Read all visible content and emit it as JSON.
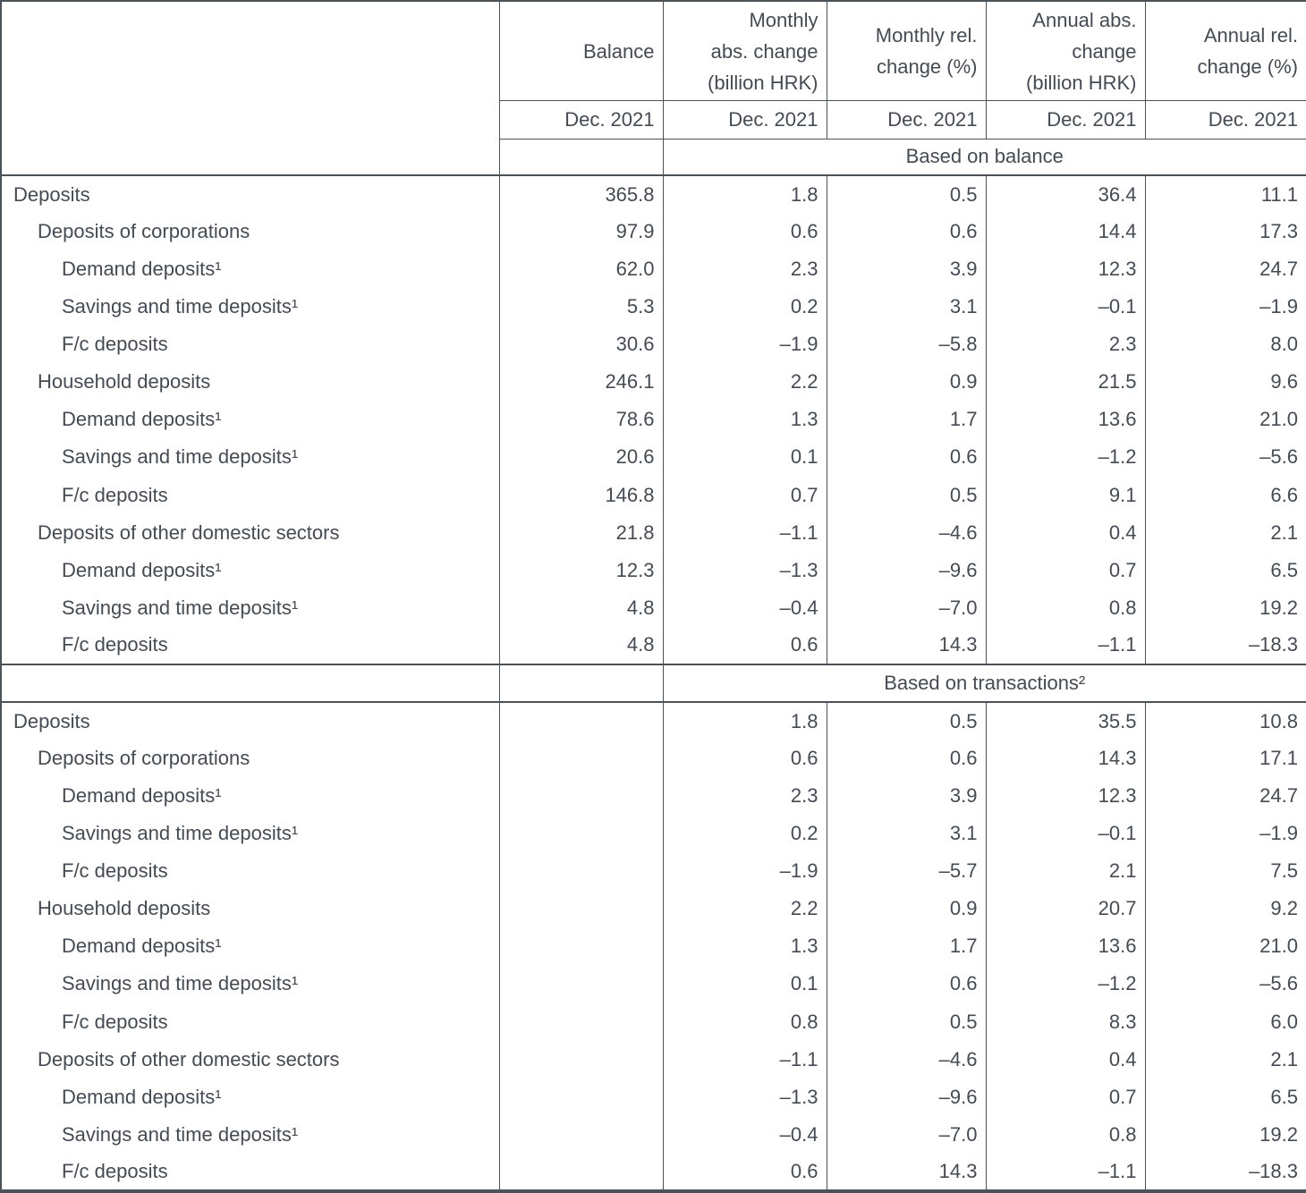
{
  "page": {
    "background": "#ffffff",
    "text_color": "#454b52",
    "line_color": "#4b5258"
  },
  "table": {
    "column_headers": [
      {
        "lines": [
          "Balance"
        ]
      },
      {
        "lines": [
          "Monthly",
          "abs. change",
          "(billion HRK)"
        ]
      },
      {
        "lines": [
          "Monthly rel.",
          "change (%)"
        ]
      },
      {
        "lines": [
          "Annual abs.",
          "change",
          "(billion HRK)"
        ]
      },
      {
        "lines": [
          "Annual rel.",
          "change (%)"
        ]
      }
    ],
    "date_labels": [
      "Dec. 2021",
      "Dec. 2021",
      "Dec. 2021",
      "Dec. 2021",
      "Dec. 2021"
    ],
    "sections": [
      {
        "title": "Based on balance",
        "rows": [
          {
            "label": "Deposits",
            "indent": 0,
            "values": [
              "365.8",
              "1.8",
              "0.5",
              "36.4",
              "11.1"
            ]
          },
          {
            "label": "Deposits of corporations",
            "indent": 1,
            "values": [
              "97.9",
              "0.6",
              "0.6",
              "14.4",
              "17.3"
            ]
          },
          {
            "label": "Demand deposits¹",
            "indent": 2,
            "values": [
              "62.0",
              "2.3",
              "3.9",
              "12.3",
              "24.7"
            ]
          },
          {
            "label": "Savings and time deposits¹",
            "indent": 2,
            "values": [
              "5.3",
              "0.2",
              "3.1",
              "–0.1",
              "–1.9"
            ]
          },
          {
            "label": "F/c deposits",
            "indent": 2,
            "values": [
              "30.6",
              "–1.9",
              "–5.8",
              "2.3",
              "8.0"
            ]
          },
          {
            "label": "Household deposits",
            "indent": 1,
            "values": [
              "246.1",
              "2.2",
              "0.9",
              "21.5",
              "9.6"
            ]
          },
          {
            "label": "Demand deposits¹",
            "indent": 2,
            "values": [
              "78.6",
              "1.3",
              "1.7",
              "13.6",
              "21.0"
            ]
          },
          {
            "label": "Savings and time deposits¹",
            "indent": 2,
            "values": [
              "20.6",
              "0.1",
              "0.6",
              "–1.2",
              "–5.6"
            ]
          },
          {
            "label": "F/c deposits",
            "indent": 2,
            "values": [
              "146.8",
              "0.7",
              "0.5",
              "9.1",
              "6.6"
            ]
          },
          {
            "label": "Deposits of other domestic sectors",
            "indent": 1,
            "values": [
              "21.8",
              "–1.1",
              "–4.6",
              "0.4",
              "2.1"
            ]
          },
          {
            "label": "Demand deposits¹",
            "indent": 2,
            "values": [
              "12.3",
              "–1.3",
              "–9.6",
              "0.7",
              "6.5"
            ]
          },
          {
            "label": "Savings and time deposits¹",
            "indent": 2,
            "values": [
              "4.8",
              "–0.4",
              "–7.0",
              "0.8",
              "19.2"
            ]
          },
          {
            "label": "F/c deposits",
            "indent": 2,
            "values": [
              "4.8",
              "0.6",
              "14.3",
              "–1.1",
              "–18.3"
            ]
          }
        ]
      },
      {
        "title": "Based on transactions²",
        "rows": [
          {
            "label": "Deposits",
            "indent": 0,
            "values": [
              "",
              "1.8",
              "0.5",
              "35.5",
              "10.8"
            ]
          },
          {
            "label": "Deposits of corporations",
            "indent": 1,
            "values": [
              "",
              "0.6",
              "0.6",
              "14.3",
              "17.1"
            ]
          },
          {
            "label": "Demand deposits¹",
            "indent": 2,
            "values": [
              "",
              "2.3",
              "3.9",
              "12.3",
              "24.7"
            ]
          },
          {
            "label": "Savings and time deposits¹",
            "indent": 2,
            "values": [
              "",
              "0.2",
              "3.1",
              "–0.1",
              "–1.9"
            ]
          },
          {
            "label": "F/c deposits",
            "indent": 2,
            "values": [
              "",
              "–1.9",
              "–5.7",
              "2.1",
              "7.5"
            ]
          },
          {
            "label": "Household deposits",
            "indent": 1,
            "values": [
              "",
              "2.2",
              "0.9",
              "20.7",
              "9.2"
            ]
          },
          {
            "label": "Demand deposits¹",
            "indent": 2,
            "values": [
              "",
              "1.3",
              "1.7",
              "13.6",
              "21.0"
            ]
          },
          {
            "label": "Savings and time deposits¹",
            "indent": 2,
            "values": [
              "",
              "0.1",
              "0.6",
              "–1.2",
              "–5.6"
            ]
          },
          {
            "label": "F/c deposits",
            "indent": 2,
            "values": [
              "",
              "0.8",
              "0.5",
              "8.3",
              "6.0"
            ]
          },
          {
            "label": "Deposits of other domestic sectors",
            "indent": 1,
            "values": [
              "",
              "–1.1",
              "–4.6",
              "0.4",
              "2.1"
            ]
          },
          {
            "label": "Demand deposits¹",
            "indent": 2,
            "values": [
              "",
              "–1.3",
              "–9.6",
              "0.7",
              "6.5"
            ]
          },
          {
            "label": "Savings and time deposits¹",
            "indent": 2,
            "values": [
              "",
              "–0.4",
              "–7.0",
              "0.8",
              "19.2"
            ]
          },
          {
            "label": "F/c deposits",
            "indent": 2,
            "values": [
              "",
              "0.6",
              "14.3",
              "–1.1",
              "–18.3"
            ]
          }
        ]
      }
    ]
  }
}
